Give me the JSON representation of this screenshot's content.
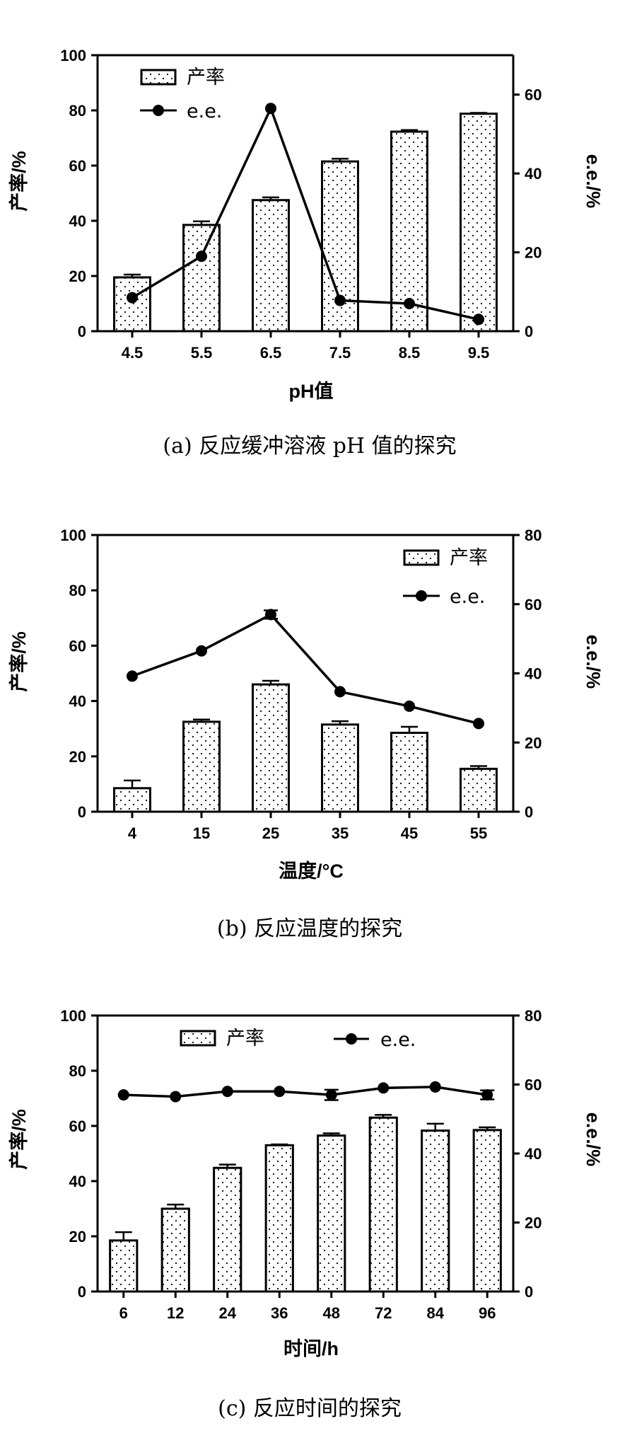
{
  "chart_data": [
    {
      "type": "bar",
      "caption": "(a) 反应缓冲溶液 pH 值的探究",
      "xlabel": "pH值",
      "ylabel_left": "产率/%",
      "ylabel_right": "e.e./%",
      "categories": [
        "4.5",
        "5.5",
        "6.5",
        "7.5",
        "8.5",
        "9.5"
      ],
      "ylim_left": [
        0,
        100
      ],
      "yticks_left": [
        0,
        20,
        40,
        60,
        80,
        100
      ],
      "ylim_right": [
        0,
        70
      ],
      "yticks_right": [
        0,
        20,
        40,
        60
      ],
      "legend_position": "top-left",
      "series": [
        {
          "name": "产率",
          "kind": "bar",
          "axis": "left",
          "values": [
            19.5,
            38.5,
            47.5,
            61.5,
            72.3,
            78.8
          ],
          "errors": [
            1.0,
            1.3,
            1.0,
            1.0,
            0.6,
            0.3
          ]
        },
        {
          "name": "e.e.",
          "kind": "line",
          "axis": "right",
          "values": [
            8.5,
            19.0,
            56.5,
            7.8,
            7.0,
            3.0
          ]
        }
      ]
    },
    {
      "type": "bar",
      "caption": "(b) 反应温度的探究",
      "xlabel": "温度/°C",
      "ylabel_left": "产率/%",
      "ylabel_right": "e.e./%",
      "categories": [
        "4",
        "15",
        "25",
        "35",
        "45",
        "55"
      ],
      "ylim_left": [
        0,
        100
      ],
      "yticks_left": [
        0,
        20,
        40,
        60,
        80,
        100
      ],
      "ylim_right": [
        0,
        80
      ],
      "yticks_right": [
        0,
        20,
        40,
        60,
        80
      ],
      "legend_position": "top-right",
      "series": [
        {
          "name": "产率",
          "kind": "bar",
          "axis": "left",
          "values": [
            8.5,
            32.5,
            46.0,
            31.5,
            28.5,
            15.5
          ],
          "errors": [
            2.8,
            0.8,
            1.3,
            1.2,
            2.2,
            1.0
          ]
        },
        {
          "name": "e.e.",
          "kind": "line",
          "axis": "right",
          "values": [
            39.2,
            46.5,
            57.0,
            34.7,
            30.5,
            25.5
          ],
          "errors": [
            0,
            0,
            1.2,
            0,
            0,
            0
          ]
        }
      ]
    },
    {
      "type": "bar",
      "caption": "(c) 反应时间的探究",
      "xlabel": "时间/h",
      "ylabel_left": "产率/%",
      "ylabel_right": "e.e./%",
      "categories": [
        "6",
        "12",
        "24",
        "36",
        "48",
        "72",
        "84",
        "96"
      ],
      "ylim_left": [
        0,
        100
      ],
      "yticks_left": [
        0,
        20,
        40,
        60,
        80,
        100
      ],
      "ylim_right": [
        0,
        80
      ],
      "yticks_right": [
        0,
        20,
        40,
        60,
        80
      ],
      "legend_position": "top-center",
      "series": [
        {
          "name": "产率",
          "kind": "bar",
          "axis": "left",
          "values": [
            18.5,
            30.0,
            44.8,
            53.0,
            56.5,
            63.0,
            58.3,
            58.5
          ],
          "errors": [
            3.0,
            1.5,
            1.2,
            0.3,
            0.8,
            1.0,
            2.5,
            1.0
          ]
        },
        {
          "name": "e.e.",
          "kind": "line",
          "axis": "right",
          "values": [
            57.0,
            56.5,
            58.0,
            58.0,
            57.0,
            59.0,
            59.3,
            57.0
          ],
          "errors": [
            0,
            0,
            0,
            0,
            1.5,
            0,
            0,
            1.3
          ]
        }
      ]
    }
  ],
  "colors": {
    "ink": "#000000",
    "bar_fill": "#ffffff",
    "bar_dots": "#000000",
    "background": "#ffffff"
  }
}
